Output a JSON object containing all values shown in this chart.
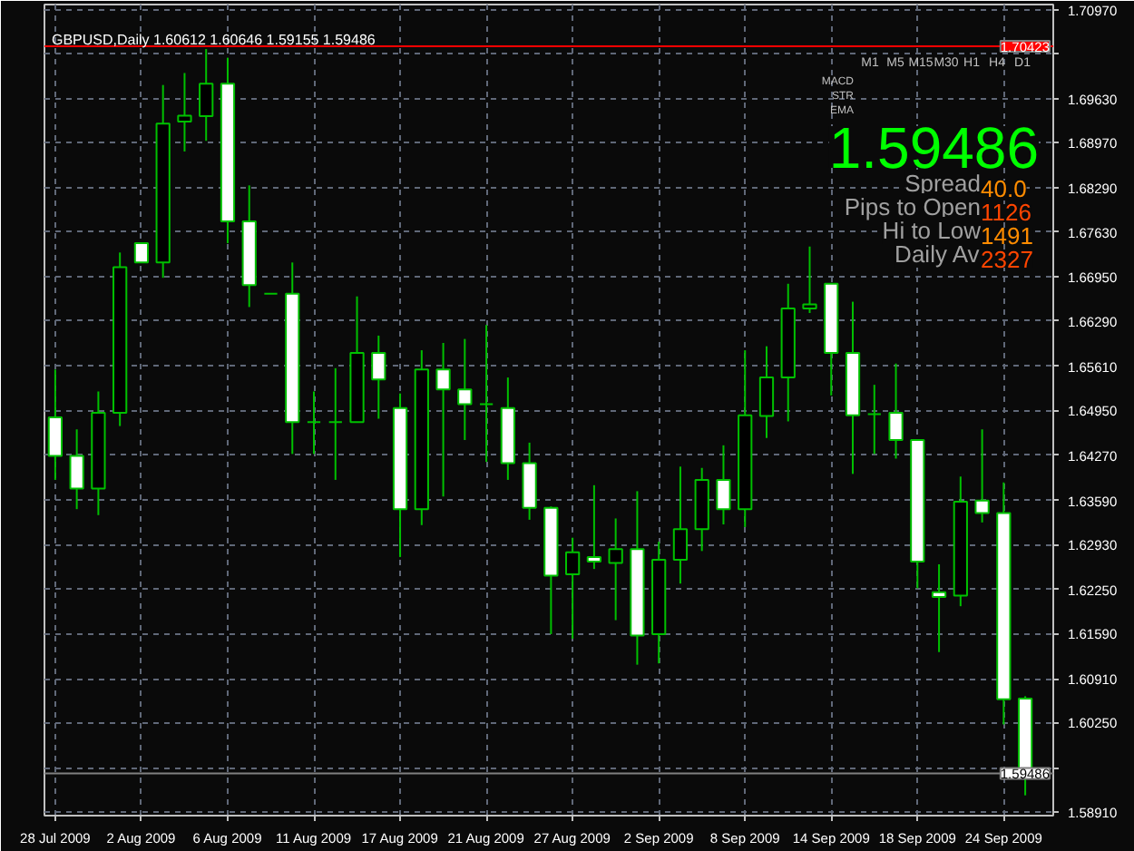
{
  "chart_data": {
    "type": "candlestick",
    "title": "GBPUSD,Daily  1.60612 1.60646 1.59155 1.59486",
    "categories": [
      "28 Jul 2009",
      null,
      null,
      null,
      "2 Aug 2009",
      null,
      null,
      null,
      "6 Aug 2009",
      null,
      null,
      null,
      "11 Aug 2009",
      null,
      null,
      null,
      "17 Aug 2009",
      null,
      null,
      null,
      "21 Aug 2009",
      null,
      null,
      null,
      "27 Aug 2009",
      null,
      null,
      null,
      "2 Sep 2009",
      null,
      null,
      null,
      "8 Sep 2009",
      null,
      null,
      null,
      "14 Sep 2009",
      null,
      null,
      null,
      "18 Sep 2009",
      null,
      null,
      null,
      "24 Sep 2009",
      null
    ],
    "ohlc": [
      [
        1.6484,
        1.6556,
        1.639,
        1.6426
      ],
      [
        1.6426,
        1.6466,
        1.6346,
        1.6377
      ],
      [
        1.6377,
        1.6523,
        1.6337,
        1.6491
      ],
      [
        1.6491,
        1.6732,
        1.6471,
        1.671
      ],
      [
        1.6746,
        1.6746,
        1.6717,
        1.6717
      ],
      [
        1.6717,
        1.6984,
        1.6694,
        1.6926
      ],
      [
        1.6929,
        1.7002,
        1.6884,
        1.6938
      ],
      [
        1.6937,
        1.7038,
        1.69,
        1.6986
      ],
      [
        1.6986,
        1.7025,
        1.6746,
        1.6779
      ],
      [
        1.6779,
        1.6833,
        1.665,
        1.6683
      ],
      [
        1.667,
        1.667,
        1.667,
        1.667
      ],
      [
        1.667,
        1.6717,
        1.6429,
        1.6477
      ],
      [
        1.6477,
        1.6523,
        1.6429,
        1.6477
      ],
      [
        1.6477,
        1.6558,
        1.639,
        1.6477
      ],
      [
        1.6477,
        1.6666,
        1.6477,
        1.6581
      ],
      [
        1.6581,
        1.6607,
        1.6482,
        1.6541
      ],
      [
        1.6498,
        1.652,
        1.6274,
        1.6346
      ],
      [
        1.6346,
        1.6585,
        1.6322,
        1.6556
      ],
      [
        1.6556,
        1.6596,
        1.6365,
        1.6526
      ],
      [
        1.6526,
        1.6602,
        1.645,
        1.6504
      ],
      [
        1.6504,
        1.6623,
        1.6417,
        1.6504
      ],
      [
        1.6498,
        1.6544,
        1.639,
        1.6415
      ],
      [
        1.6415,
        1.6446,
        1.633,
        1.6348
      ],
      [
        1.6348,
        1.635,
        1.6158,
        1.6246
      ],
      [
        1.6248,
        1.6303,
        1.6151,
        1.6281
      ],
      [
        1.6274,
        1.6382,
        1.6256,
        1.6267
      ],
      [
        1.6265,
        1.6332,
        1.6179,
        1.6286
      ],
      [
        1.6286,
        1.6373,
        1.6112,
        1.6156
      ],
      [
        1.6158,
        1.6297,
        1.6114,
        1.627
      ],
      [
        1.627,
        1.641,
        1.6234,
        1.6316
      ],
      [
        1.6316,
        1.6408,
        1.6283,
        1.639
      ],
      [
        1.639,
        1.6442,
        1.6323,
        1.6346
      ],
      [
        1.6346,
        1.6585,
        1.6319,
        1.6487
      ],
      [
        1.6486,
        1.6591,
        1.6453,
        1.6544
      ],
      [
        1.6544,
        1.6685,
        1.6478,
        1.6648
      ],
      [
        1.6648,
        1.6741,
        1.6641,
        1.6654
      ],
      [
        1.6685,
        1.6685,
        1.6517,
        1.6581
      ],
      [
        1.6581,
        1.6658,
        1.6399,
        1.6487
      ],
      [
        1.6489,
        1.6533,
        1.6429,
        1.6489
      ],
      [
        1.6491,
        1.6565,
        1.6422,
        1.645
      ],
      [
        1.645,
        1.645,
        1.6227,
        1.6267
      ],
      [
        1.6221,
        1.6263,
        1.6131,
        1.6214
      ],
      [
        1.6216,
        1.6395,
        1.62,
        1.6357
      ],
      [
        1.6359,
        1.6466,
        1.6326,
        1.634
      ],
      [
        1.634,
        1.6386,
        1.6022,
        1.606
      ],
      [
        1.60612,
        1.60646,
        1.59155,
        1.59486
      ]
    ],
    "ylim": [
      1.5885,
      1.7105
    ],
    "yticks": [
      {
        "value": 1.7097,
        "label": "1.70970"
      },
      {
        "value": 1.7031,
        "label": null
      },
      {
        "value": 1.6963,
        "label": "1.69630"
      },
      {
        "value": 1.6897,
        "label": "1.68970"
      },
      {
        "value": 1.6829,
        "label": "1.68290"
      },
      {
        "value": 1.6763,
        "label": "1.67630"
      },
      {
        "value": 1.6695,
        "label": "1.66950"
      },
      {
        "value": 1.6629,
        "label": "1.66290"
      },
      {
        "value": 1.6561,
        "label": "1.65610"
      },
      {
        "value": 1.6495,
        "label": "1.64950"
      },
      {
        "value": 1.6427,
        "label": "1.64270"
      },
      {
        "value": 1.6359,
        "label": "1.63590"
      },
      {
        "value": 1.6293,
        "label": "1.62930"
      },
      {
        "value": 1.6225,
        "label": "1.62250"
      },
      {
        "value": 1.6159,
        "label": "1.61590"
      },
      {
        "value": 1.6091,
        "label": "1.60910"
      },
      {
        "value": 1.6025,
        "label": "1.60250"
      },
      {
        "value": 1.5957,
        "label": null
      },
      {
        "value": 1.5891,
        "label": "1.58910"
      }
    ],
    "grid": true,
    "ref_lines": [
      {
        "axis": "y",
        "value": 1.70423,
        "label": "1.70423",
        "color": "#ff0000"
      },
      {
        "axis": "y",
        "value": 1.59486,
        "label": "1.59486",
        "color": "#808080"
      }
    ],
    "annotations": [
      "M1",
      "M5",
      "M15",
      "M30",
      "H1",
      "H4",
      "D1",
      "MACD",
      "STR",
      "EMA",
      "1.59486",
      "Spread",
      "40.0",
      "Pips to Open",
      "1126",
      "Hi to Low",
      "1491",
      "Daily Av",
      "2327"
    ]
  }
}
